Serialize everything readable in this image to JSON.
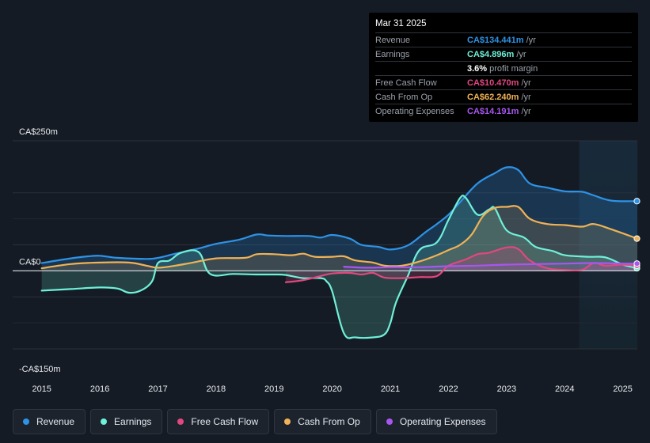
{
  "tooltip": {
    "date": "Mar 31 2025",
    "rows": [
      {
        "label": "Revenue",
        "value": "CA$134.441m",
        "unit": "/yr",
        "color": "#2e93e6"
      },
      {
        "label": "Earnings",
        "value": "CA$4.896m",
        "unit": "/yr",
        "color": "#6ff0d9"
      },
      {
        "label": "",
        "value": "3.6%",
        "unit": "profit margin",
        "color": "#ffffff"
      },
      {
        "label": "Free Cash Flow",
        "value": "CA$10.470m",
        "unit": "/yr",
        "color": "#e0487f"
      },
      {
        "label": "Cash From Op",
        "value": "CA$62.240m",
        "unit": "/yr",
        "color": "#f0b256"
      },
      {
        "label": "Operating Expenses",
        "value": "CA$14.191m",
        "unit": "/yr",
        "color": "#a856f0"
      }
    ]
  },
  "legend": [
    {
      "label": "Revenue",
      "color": "#2e93e6"
    },
    {
      "label": "Earnings",
      "color": "#6ff0d9"
    },
    {
      "label": "Free Cash Flow",
      "color": "#e0487f"
    },
    {
      "label": "Cash From Op",
      "color": "#f0b256"
    },
    {
      "label": "Operating Expenses",
      "color": "#a856f0"
    }
  ],
  "chart_data": {
    "type": "area",
    "x_unit": "year",
    "ylim": [
      -150,
      250
    ],
    "y_tick_labels": [
      {
        "value": 250,
        "label": "CA$250m"
      },
      {
        "value": 0,
        "label": "CA$0"
      },
      {
        "value": -150,
        "label": "-CA$150m"
      }
    ],
    "x_ticks": [
      {
        "value": 2015,
        "label": "2015"
      },
      {
        "value": 2016,
        "label": "2016"
      },
      {
        "value": 2017,
        "label": "2017"
      },
      {
        "value": 2018,
        "label": "2018"
      },
      {
        "value": 2019,
        "label": "2019"
      },
      {
        "value": 2020,
        "label": "2020"
      },
      {
        "value": 2021,
        "label": "2021"
      },
      {
        "value": 2022,
        "label": "2022"
      },
      {
        "value": 2023,
        "label": "2023"
      },
      {
        "value": 2024,
        "label": "2024"
      },
      {
        "value": 2025,
        "label": "2025"
      }
    ],
    "xlim": [
      2014.5,
      2025.25
    ],
    "forecast_start": 2024.25,
    "grid": true,
    "series": [
      {
        "name": "Revenue",
        "color": "#2e93e6",
        "points": [
          [
            2015.0,
            15
          ],
          [
            2015.5,
            24
          ],
          [
            2015.8,
            28
          ],
          [
            2016.0,
            29
          ],
          [
            2016.3,
            25
          ],
          [
            2016.8,
            23
          ],
          [
            2017.0,
            25
          ],
          [
            2017.3,
            33
          ],
          [
            2017.7,
            43
          ],
          [
            2018.0,
            52
          ],
          [
            2018.4,
            60
          ],
          [
            2018.7,
            70
          ],
          [
            2018.9,
            68
          ],
          [
            2019.2,
            67
          ],
          [
            2019.6,
            67
          ],
          [
            2019.8,
            64
          ],
          [
            2020.0,
            69
          ],
          [
            2020.3,
            62
          ],
          [
            2020.5,
            50
          ],
          [
            2020.8,
            46
          ],
          [
            2021.0,
            41
          ],
          [
            2021.3,
            49
          ],
          [
            2021.6,
            74
          ],
          [
            2021.8,
            90
          ],
          [
            2022.0,
            108
          ],
          [
            2022.2,
            132
          ],
          [
            2022.5,
            168
          ],
          [
            2022.8,
            188
          ],
          [
            2023.0,
            199
          ],
          [
            2023.2,
            194
          ],
          [
            2023.4,
            168
          ],
          [
            2023.7,
            160
          ],
          [
            2024.0,
            153
          ],
          [
            2024.3,
            152
          ],
          [
            2024.5,
            145
          ],
          [
            2024.8,
            135
          ],
          [
            2025.25,
            134
          ]
        ]
      },
      {
        "name": "Earnings",
        "color": "#6ff0d9",
        "points": [
          [
            2015.0,
            -38
          ],
          [
            2015.5,
            -35
          ],
          [
            2016.0,
            -32
          ],
          [
            2016.3,
            -34
          ],
          [
            2016.5,
            -42
          ],
          [
            2016.7,
            -38
          ],
          [
            2016.9,
            -20
          ],
          [
            2017.0,
            15
          ],
          [
            2017.2,
            20
          ],
          [
            2017.4,
            35
          ],
          [
            2017.7,
            36
          ],
          [
            2017.9,
            -6
          ],
          [
            2018.3,
            -6
          ],
          [
            2018.7,
            -7
          ],
          [
            2019.0,
            -7
          ],
          [
            2019.2,
            -8
          ],
          [
            2019.5,
            -14
          ],
          [
            2019.8,
            -14
          ],
          [
            2019.9,
            -20
          ],
          [
            2020.0,
            -40
          ],
          [
            2020.2,
            -120
          ],
          [
            2020.4,
            -128
          ],
          [
            2020.7,
            -128
          ],
          [
            2020.9,
            -122
          ],
          [
            2021.0,
            -100
          ],
          [
            2021.1,
            -60
          ],
          [
            2021.3,
            -10
          ],
          [
            2021.5,
            40
          ],
          [
            2021.8,
            55
          ],
          [
            2022.0,
            98
          ],
          [
            2022.2,
            140
          ],
          [
            2022.3,
            140
          ],
          [
            2022.5,
            108
          ],
          [
            2022.7,
            118
          ],
          [
            2022.8,
            120
          ],
          [
            2023.0,
            78
          ],
          [
            2023.3,
            64
          ],
          [
            2023.5,
            46
          ],
          [
            2023.8,
            38
          ],
          [
            2024.0,
            30
          ],
          [
            2024.4,
            27
          ],
          [
            2024.7,
            26
          ],
          [
            2025.0,
            12
          ],
          [
            2025.25,
            5
          ]
        ]
      },
      {
        "name": "Free Cash Flow",
        "color": "#e0487f",
        "points": [
          [
            2019.2,
            -22
          ],
          [
            2019.5,
            -18
          ],
          [
            2019.8,
            -10
          ],
          [
            2020.0,
            -5
          ],
          [
            2020.3,
            -4
          ],
          [
            2020.5,
            -7
          ],
          [
            2020.7,
            -4
          ],
          [
            2020.9,
            -13
          ],
          [
            2021.2,
            -14
          ],
          [
            2021.5,
            -12
          ],
          [
            2021.8,
            -10
          ],
          [
            2022.0,
            10
          ],
          [
            2022.3,
            22
          ],
          [
            2022.5,
            32
          ],
          [
            2022.7,
            35
          ],
          [
            2023.0,
            45
          ],
          [
            2023.2,
            42
          ],
          [
            2023.4,
            20
          ],
          [
            2023.7,
            5
          ],
          [
            2024.0,
            2
          ],
          [
            2024.3,
            2
          ],
          [
            2024.5,
            15
          ],
          [
            2024.7,
            10
          ],
          [
            2025.0,
            12
          ],
          [
            2025.25,
            10
          ]
        ]
      },
      {
        "name": "Cash From Op",
        "color": "#f0b256",
        "points": [
          [
            2015.0,
            5
          ],
          [
            2015.5,
            13
          ],
          [
            2016.0,
            16
          ],
          [
            2016.5,
            16
          ],
          [
            2016.8,
            10
          ],
          [
            2017.0,
            6
          ],
          [
            2017.3,
            10
          ],
          [
            2017.6,
            16
          ],
          [
            2018.0,
            24
          ],
          [
            2018.5,
            25
          ],
          [
            2018.7,
            32
          ],
          [
            2019.0,
            32
          ],
          [
            2019.3,
            30
          ],
          [
            2019.5,
            33
          ],
          [
            2019.7,
            27
          ],
          [
            2020.0,
            27
          ],
          [
            2020.2,
            28
          ],
          [
            2020.4,
            20
          ],
          [
            2020.7,
            16
          ],
          [
            2020.9,
            10
          ],
          [
            2021.2,
            10
          ],
          [
            2021.5,
            18
          ],
          [
            2021.8,
            30
          ],
          [
            2022.0,
            40
          ],
          [
            2022.2,
            50
          ],
          [
            2022.4,
            70
          ],
          [
            2022.6,
            106
          ],
          [
            2022.8,
            121
          ],
          [
            2023.0,
            123
          ],
          [
            2023.2,
            123
          ],
          [
            2023.4,
            100
          ],
          [
            2023.7,
            90
          ],
          [
            2024.0,
            88
          ],
          [
            2024.3,
            85
          ],
          [
            2024.5,
            90
          ],
          [
            2024.8,
            80
          ],
          [
            2025.25,
            62
          ]
        ]
      },
      {
        "name": "Operating Expenses",
        "color": "#a856f0",
        "points": [
          [
            2020.2,
            8
          ],
          [
            2020.6,
            6
          ],
          [
            2021.0,
            7
          ],
          [
            2021.5,
            7
          ],
          [
            2022.0,
            9
          ],
          [
            2022.5,
            10
          ],
          [
            2023.0,
            12
          ],
          [
            2023.5,
            13
          ],
          [
            2024.0,
            14
          ],
          [
            2024.5,
            15
          ],
          [
            2025.0,
            14
          ],
          [
            2025.25,
            14
          ]
        ]
      }
    ]
  }
}
